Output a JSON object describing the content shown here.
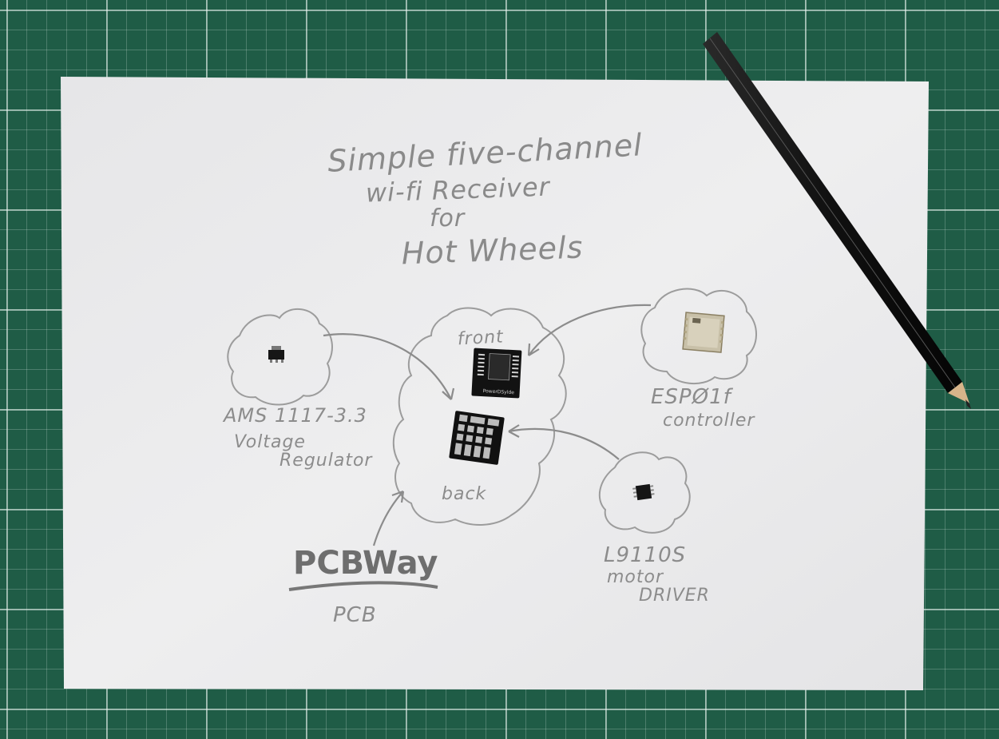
{
  "title": {
    "line1": "Simple five-channel",
    "line2": "wi-fi Receiver",
    "line3": "for",
    "line4": "Hot Wheels"
  },
  "labels": {
    "front": "front",
    "back": "back",
    "regulator_name": "AMS 1117-3.3",
    "regulator_desc1": "Voltage",
    "regulator_desc2": "Regulator",
    "controller_name": "ESPØ1f",
    "controller_desc": "controller",
    "driver_name": "L9110S",
    "driver_desc1": "motor",
    "driver_desc2": "DRIVER",
    "brand": "PCBWay",
    "brand_sub": "PCB",
    "board_silk": "PowerDSylde"
  },
  "colors": {
    "mat": "#1f5c46",
    "paper": "#ececec",
    "pencil": "#8a8a8a",
    "chip": "#141414"
  }
}
